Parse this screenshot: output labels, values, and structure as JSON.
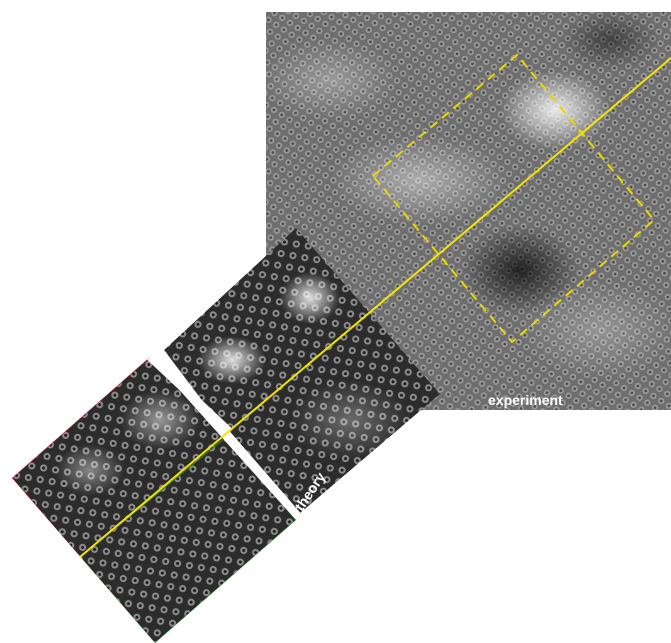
{
  "figure": {
    "experiment_label": "experiment",
    "theory_label": "theory",
    "overlay_line_color": "#f2e600",
    "roi_box_color": "#e8d800",
    "lattice_red": "#c8102e",
    "lattice_green": "#1f8a2b"
  }
}
